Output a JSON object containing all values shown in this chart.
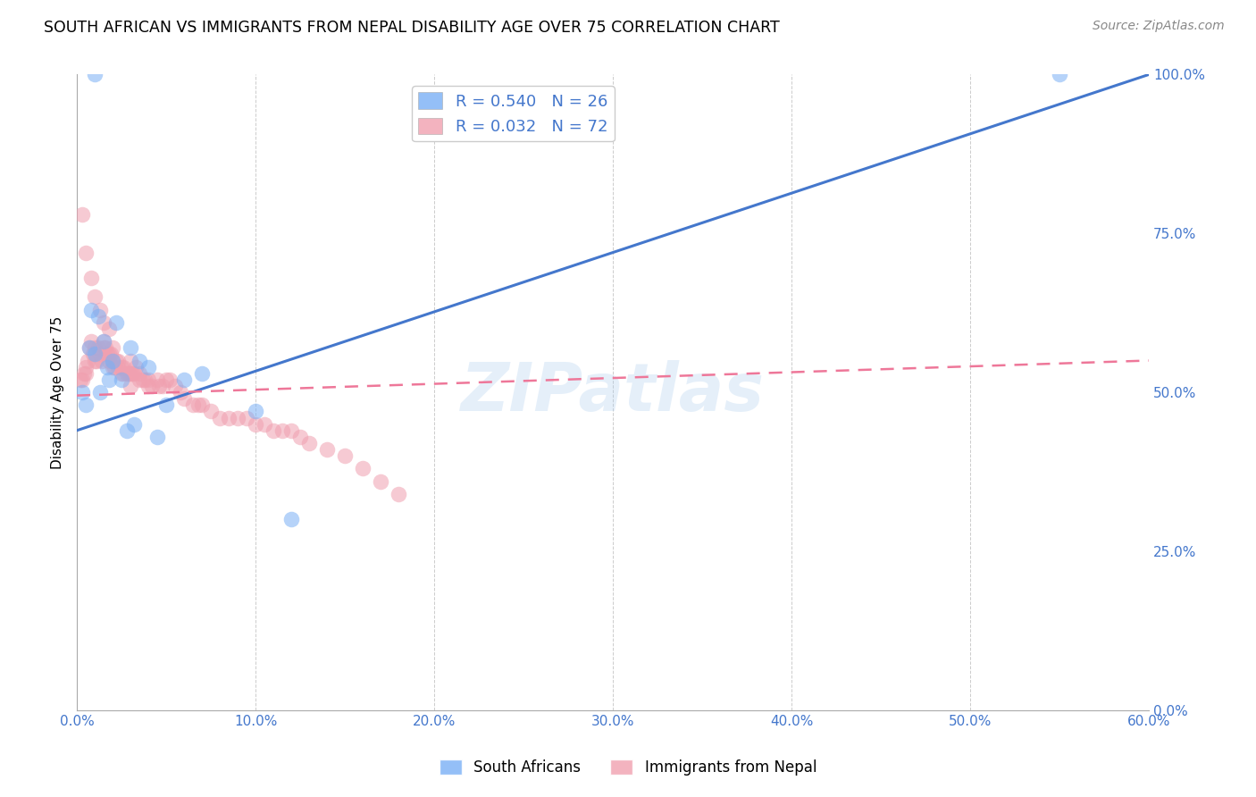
{
  "title": "SOUTH AFRICAN VS IMMIGRANTS FROM NEPAL DISABILITY AGE OVER 75 CORRELATION CHART",
  "source": "Source: ZipAtlas.com",
  "xlabel_vals": [
    0.0,
    10.0,
    20.0,
    30.0,
    40.0,
    50.0,
    60.0
  ],
  "ylabel_vals_right": [
    0.0,
    25.0,
    50.0,
    75.0,
    100.0
  ],
  "ylabel_label": "Disability Age Over 75",
  "xlim": [
    0.0,
    60.0
  ],
  "ylim": [
    0.0,
    100.0
  ],
  "watermark": "ZIPatlas",
  "legend_r1": "R = 0.540",
  "legend_n1": "N = 26",
  "legend_r2": "R = 0.032",
  "legend_n2": "N = 72",
  "legend_label1": "South Africans",
  "legend_label2": "Immigrants from Nepal",
  "blue_color": "#7ab0f5",
  "pink_color": "#f0a0b0",
  "blue_line_color": "#4477cc",
  "pink_line_color": "#ee7799",
  "blue_line_x": [
    0.0,
    60.0
  ],
  "blue_line_y": [
    44.0,
    100.0
  ],
  "pink_line_x": [
    0.0,
    60.0
  ],
  "pink_line_y": [
    49.5,
    55.0
  ],
  "sa_x": [
    0.3,
    0.5,
    0.7,
    0.8,
    1.0,
    1.0,
    1.2,
    1.5,
    1.7,
    1.8,
    2.0,
    2.2,
    2.5,
    3.0,
    3.5,
    4.0,
    5.0,
    6.0,
    7.0,
    10.0,
    12.0,
    1.3,
    2.8,
    3.2,
    4.5,
    55.0
  ],
  "sa_y": [
    50.0,
    48.0,
    57.0,
    63.0,
    56.0,
    100.0,
    62.0,
    58.0,
    54.0,
    52.0,
    55.0,
    61.0,
    52.0,
    57.0,
    55.0,
    54.0,
    48.0,
    52.0,
    53.0,
    47.0,
    30.0,
    50.0,
    44.0,
    45.0,
    43.0,
    100.0
  ],
  "nepal_x": [
    0.2,
    0.3,
    0.4,
    0.5,
    0.5,
    0.6,
    0.7,
    0.8,
    0.9,
    1.0,
    1.0,
    1.1,
    1.2,
    1.3,
    1.4,
    1.5,
    1.5,
    1.6,
    1.7,
    1.8,
    1.8,
    1.9,
    2.0,
    2.0,
    2.1,
    2.2,
    2.3,
    2.5,
    2.5,
    2.6,
    2.8,
    2.9,
    3.0,
    3.0,
    3.1,
    3.2,
    3.3,
    3.5,
    3.5,
    3.7,
    4.0,
    4.0,
    4.2,
    4.5,
    4.6,
    4.8,
    5.0,
    5.2,
    5.5,
    5.8,
    6.0,
    6.5,
    7.0,
    7.5,
    8.0,
    8.5,
    9.0,
    9.5,
    10.0,
    10.5,
    11.0,
    11.5,
    12.0,
    12.5,
    13.0,
    14.0,
    15.0,
    16.0,
    17.0,
    18.0,
    3.8,
    6.8
  ],
  "nepal_y": [
    52.0,
    52.0,
    53.0,
    54.0,
    53.0,
    55.0,
    57.0,
    58.0,
    56.0,
    57.0,
    55.0,
    55.0,
    57.0,
    56.0,
    55.0,
    58.0,
    57.0,
    57.0,
    56.0,
    55.0,
    56.0,
    56.0,
    55.0,
    54.0,
    54.0,
    55.0,
    54.0,
    54.0,
    53.0,
    54.0,
    53.0,
    53.0,
    53.0,
    55.0,
    53.0,
    53.0,
    54.0,
    53.0,
    52.0,
    52.0,
    52.0,
    51.0,
    51.0,
    52.0,
    51.0,
    51.0,
    52.0,
    52.0,
    51.0,
    50.0,
    49.0,
    48.0,
    48.0,
    47.0,
    46.0,
    46.0,
    46.0,
    46.0,
    45.0,
    45.0,
    44.0,
    44.0,
    44.0,
    43.0,
    42.0,
    41.0,
    40.0,
    38.0,
    36.0,
    34.0,
    52.0,
    48.0
  ],
  "nepal_extra_x": [
    0.3,
    0.5,
    0.8,
    1.0,
    1.3,
    1.5,
    1.8,
    2.0,
    2.3,
    2.6,
    3.0
  ],
  "nepal_extra_y": [
    78.0,
    72.0,
    68.0,
    65.0,
    63.0,
    61.0,
    60.0,
    57.0,
    55.0,
    53.0,
    51.0
  ]
}
